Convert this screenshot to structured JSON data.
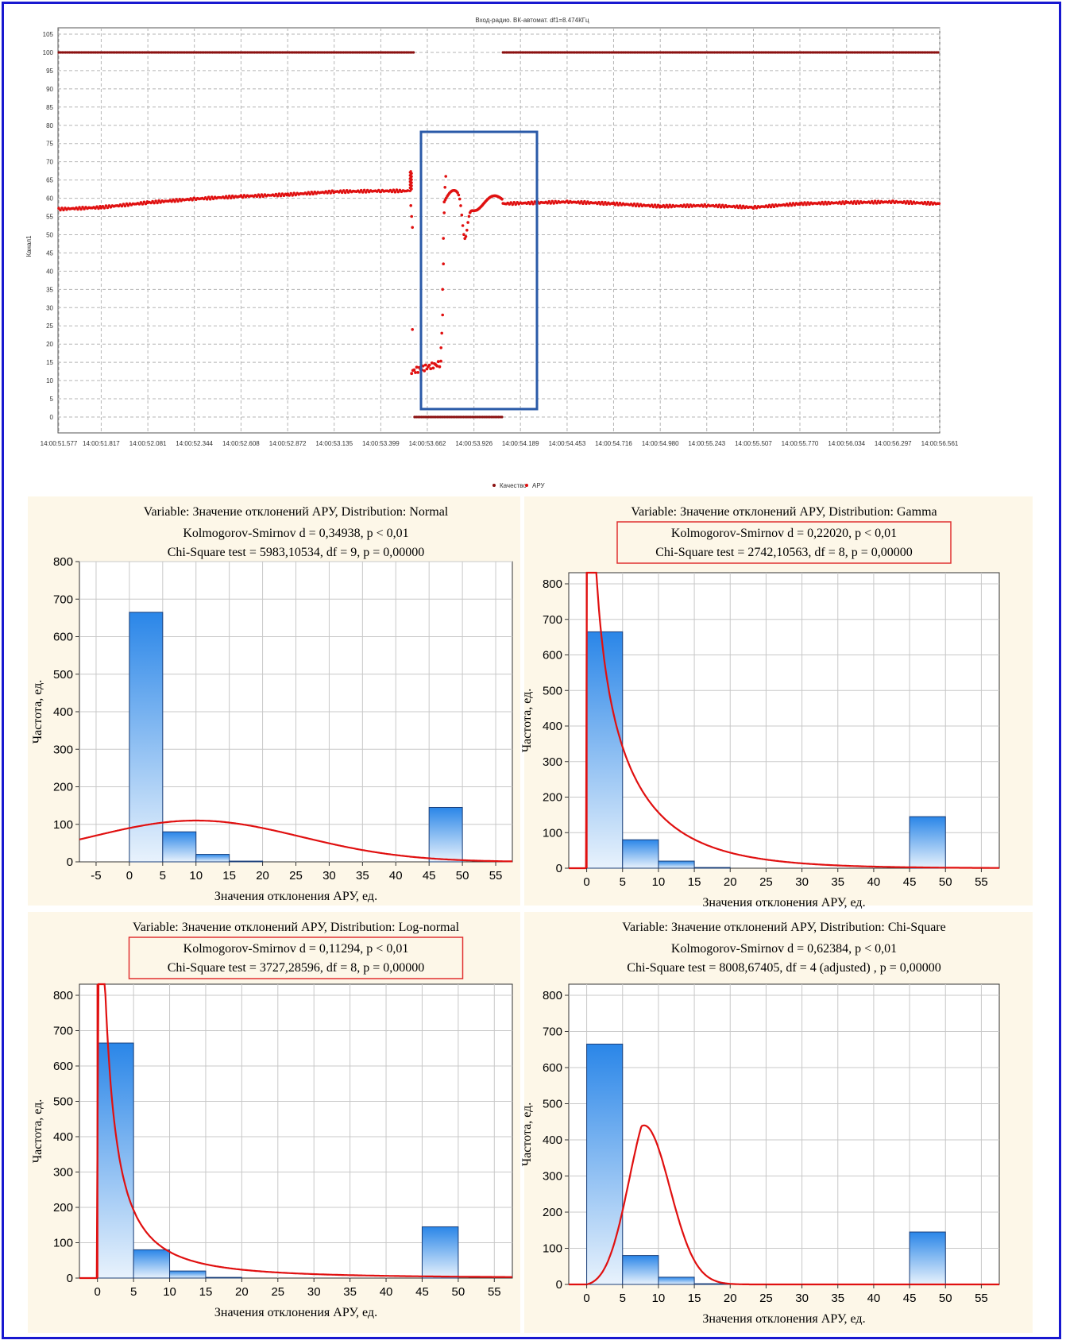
{
  "colors": {
    "border": "#1818d0",
    "curve": "#e01010",
    "top_series": "#d01010",
    "highlight_box": "#2a5aa8",
    "bar_top": "#2a86e8",
    "bar_bottom": "#e8f2fc",
    "panel_bg": "#fdf7e8",
    "stats_box": "#e03030"
  },
  "chart_data": [
    {
      "type": "scatter",
      "title": "Вход-радио. ВК-автомат. df1=8.474КГц",
      "ylabel": "Канал1",
      "ylim": [
        0,
        105
      ],
      "yticks": [
        0,
        5,
        10,
        15,
        20,
        25,
        30,
        35,
        40,
        45,
        50,
        55,
        60,
        65,
        70,
        75,
        80,
        85,
        90,
        95,
        100,
        105
      ],
      "x_tick_labels": [
        "14:00:51.577",
        "14:00:51.817",
        "14:00:52.081",
        "14:00:52.344",
        "14:00:52.608",
        "14:00:52.872",
        "14:00:53.135",
        "14:00:53.399",
        "14:00:53.662",
        "14:00:53.926",
        "14:00:54.189",
        "14:00:54.453",
        "14:00:54.716",
        "14:00:54.980",
        "14:00:55.243",
        "14:00:55.507",
        "14:00:55.770",
        "14:00:56.034",
        "14:00:56.297",
        "14:00:56.561"
      ],
      "legend": [
        "Качество",
        "АРУ"
      ],
      "legend_position": "bottom",
      "grid": true,
      "series": [
        {
          "name": "Качество",
          "color": "#8b1010",
          "segments": [
            {
              "from": "14:00:51.577",
              "to": "14:00:53.590",
              "value": 100
            },
            {
              "from": "14:00:53.590",
              "to": "14:00:54.090",
              "value": 0
            },
            {
              "from": "14:00:54.090",
              "to": "14:00:56.561",
              "value": 100
            }
          ]
        },
        {
          "name": "АРУ",
          "color": "#e01010",
          "points": [
            [
              "14:00:51.577",
              57
            ],
            [
              "14:00:51.817",
              57.5
            ],
            [
              "14:00:52.081",
              58.8
            ],
            [
              "14:00:52.344",
              59.8
            ],
            [
              "14:00:52.608",
              60.5
            ],
            [
              "14:00:52.872",
              61
            ],
            [
              "14:00:53.135",
              61.8
            ],
            [
              "14:00:53.399",
              62
            ],
            [
              "14:00:53.560",
              62
            ],
            [
              "14:00:53.590",
              12
            ],
            [
              "14:00:53.760",
              15
            ],
            [
              "14:00:53.790",
              60
            ],
            [
              "14:00:53.850",
              58
            ],
            [
              "14:00:53.926",
              50
            ],
            [
              "14:00:54.000",
              60
            ],
            [
              "14:00:54.090",
              58.5
            ],
            [
              "14:00:54.453",
              59
            ],
            [
              "14:00:54.716",
              58.5
            ],
            [
              "14:00:54.980",
              57.8
            ],
            [
              "14:00:55.243",
              58
            ],
            [
              "14:00:55.507",
              57.5
            ],
            [
              "14:00:55.770",
              58.5
            ],
            [
              "14:00:56.034",
              58.8
            ],
            [
              "14:00:56.297",
              59
            ],
            [
              "14:00:56.561",
              58.5
            ]
          ]
        }
      ]
    },
    {
      "type": "bar",
      "title": "Variable: Значение отклонений АРУ, Distribution: Normal",
      "stats": [
        "Kolmogorov-Smirnov d = 0,34938, p < 0,01",
        "Chi-Square test = 5983,10534, df = 9, p = 0,00000"
      ],
      "xlabel": "Значения отклонения АРУ, ед.",
      "ylabel": "Частота, ед.",
      "xlim": [
        -7.5,
        57.5
      ],
      "ylim": [
        0,
        800
      ],
      "xticks": [
        -5,
        0,
        5,
        10,
        15,
        20,
        25,
        30,
        35,
        40,
        45,
        50,
        55
      ],
      "yticks": [
        0,
        100,
        200,
        300,
        400,
        500,
        600,
        700,
        800
      ],
      "bins": [
        [
          0,
          5,
          665
        ],
        [
          5,
          10,
          80
        ],
        [
          10,
          15,
          20
        ],
        [
          15,
          20,
          2
        ],
        [
          45,
          50,
          145
        ]
      ],
      "fit_curve": "Normal"
    },
    {
      "type": "bar",
      "title": "Variable: Значение отклонений АРУ, Distribution: Gamma",
      "stats": [
        "Kolmogorov-Smirnov d = 0,22020, p < 0,01",
        "Chi-Square test = 2742,10563, df = 8, p = 0,00000"
      ],
      "xlabel": "Значения отклонения АРУ, ед.",
      "ylabel": "Частота, ед.",
      "xlim": [
        -2.5,
        57.5
      ],
      "ylim": [
        0,
        800
      ],
      "xticks": [
        0,
        5,
        10,
        15,
        20,
        25,
        30,
        35,
        40,
        45,
        50,
        55
      ],
      "yticks": [
        0,
        100,
        200,
        300,
        400,
        500,
        600,
        700,
        800
      ],
      "bins": [
        [
          0,
          5,
          665
        ],
        [
          5,
          10,
          80
        ],
        [
          10,
          15,
          20
        ],
        [
          15,
          20,
          2
        ],
        [
          45,
          50,
          145
        ]
      ],
      "fit_curve": "Gamma"
    },
    {
      "type": "bar",
      "title": "Variable: Значение отклонений АРУ, Distribution: Log-normal",
      "stats": [
        "Kolmogorov-Smirnov d = 0,11294, p < 0,01",
        "Chi-Square test = 3727,28596, df = 8, p = 0,00000"
      ],
      "xlabel": "Значения отклонения АРУ, ед.",
      "ylabel": "Частота, ед.",
      "xlim": [
        -2.5,
        57.5
      ],
      "ylim": [
        0,
        800
      ],
      "xticks": [
        0,
        5,
        10,
        15,
        20,
        25,
        30,
        35,
        40,
        45,
        50,
        55
      ],
      "yticks": [
        0,
        100,
        200,
        300,
        400,
        500,
        600,
        700,
        800
      ],
      "bins": [
        [
          0,
          5,
          665
        ],
        [
          5,
          10,
          80
        ],
        [
          10,
          15,
          20
        ],
        [
          15,
          20,
          2
        ],
        [
          45,
          50,
          145
        ]
      ],
      "fit_curve": "Log-normal"
    },
    {
      "type": "bar",
      "title": "Variable: Значение отклонений АРУ, Distribution: Chi-Square",
      "stats": [
        "Kolmogorov-Smirnov d = 0,62384, p < 0,01",
        "Chi-Square test = 8008,67405, df = 4 (adjusted) , p = 0,00000"
      ],
      "xlabel": "Значения отклонения АРУ, ед.",
      "ylabel": "Частота, ед.",
      "xlim": [
        -2.5,
        57.5
      ],
      "ylim": [
        0,
        800
      ],
      "xticks": [
        0,
        5,
        10,
        15,
        20,
        25,
        30,
        35,
        40,
        45,
        50,
        55
      ],
      "yticks": [
        0,
        100,
        200,
        300,
        400,
        500,
        600,
        700,
        800
      ],
      "bins": [
        [
          0,
          5,
          665
        ],
        [
          5,
          10,
          80
        ],
        [
          10,
          15,
          20
        ],
        [
          15,
          20,
          2
        ],
        [
          45,
          50,
          145
        ]
      ],
      "fit_curve": "Chi-Square"
    }
  ]
}
